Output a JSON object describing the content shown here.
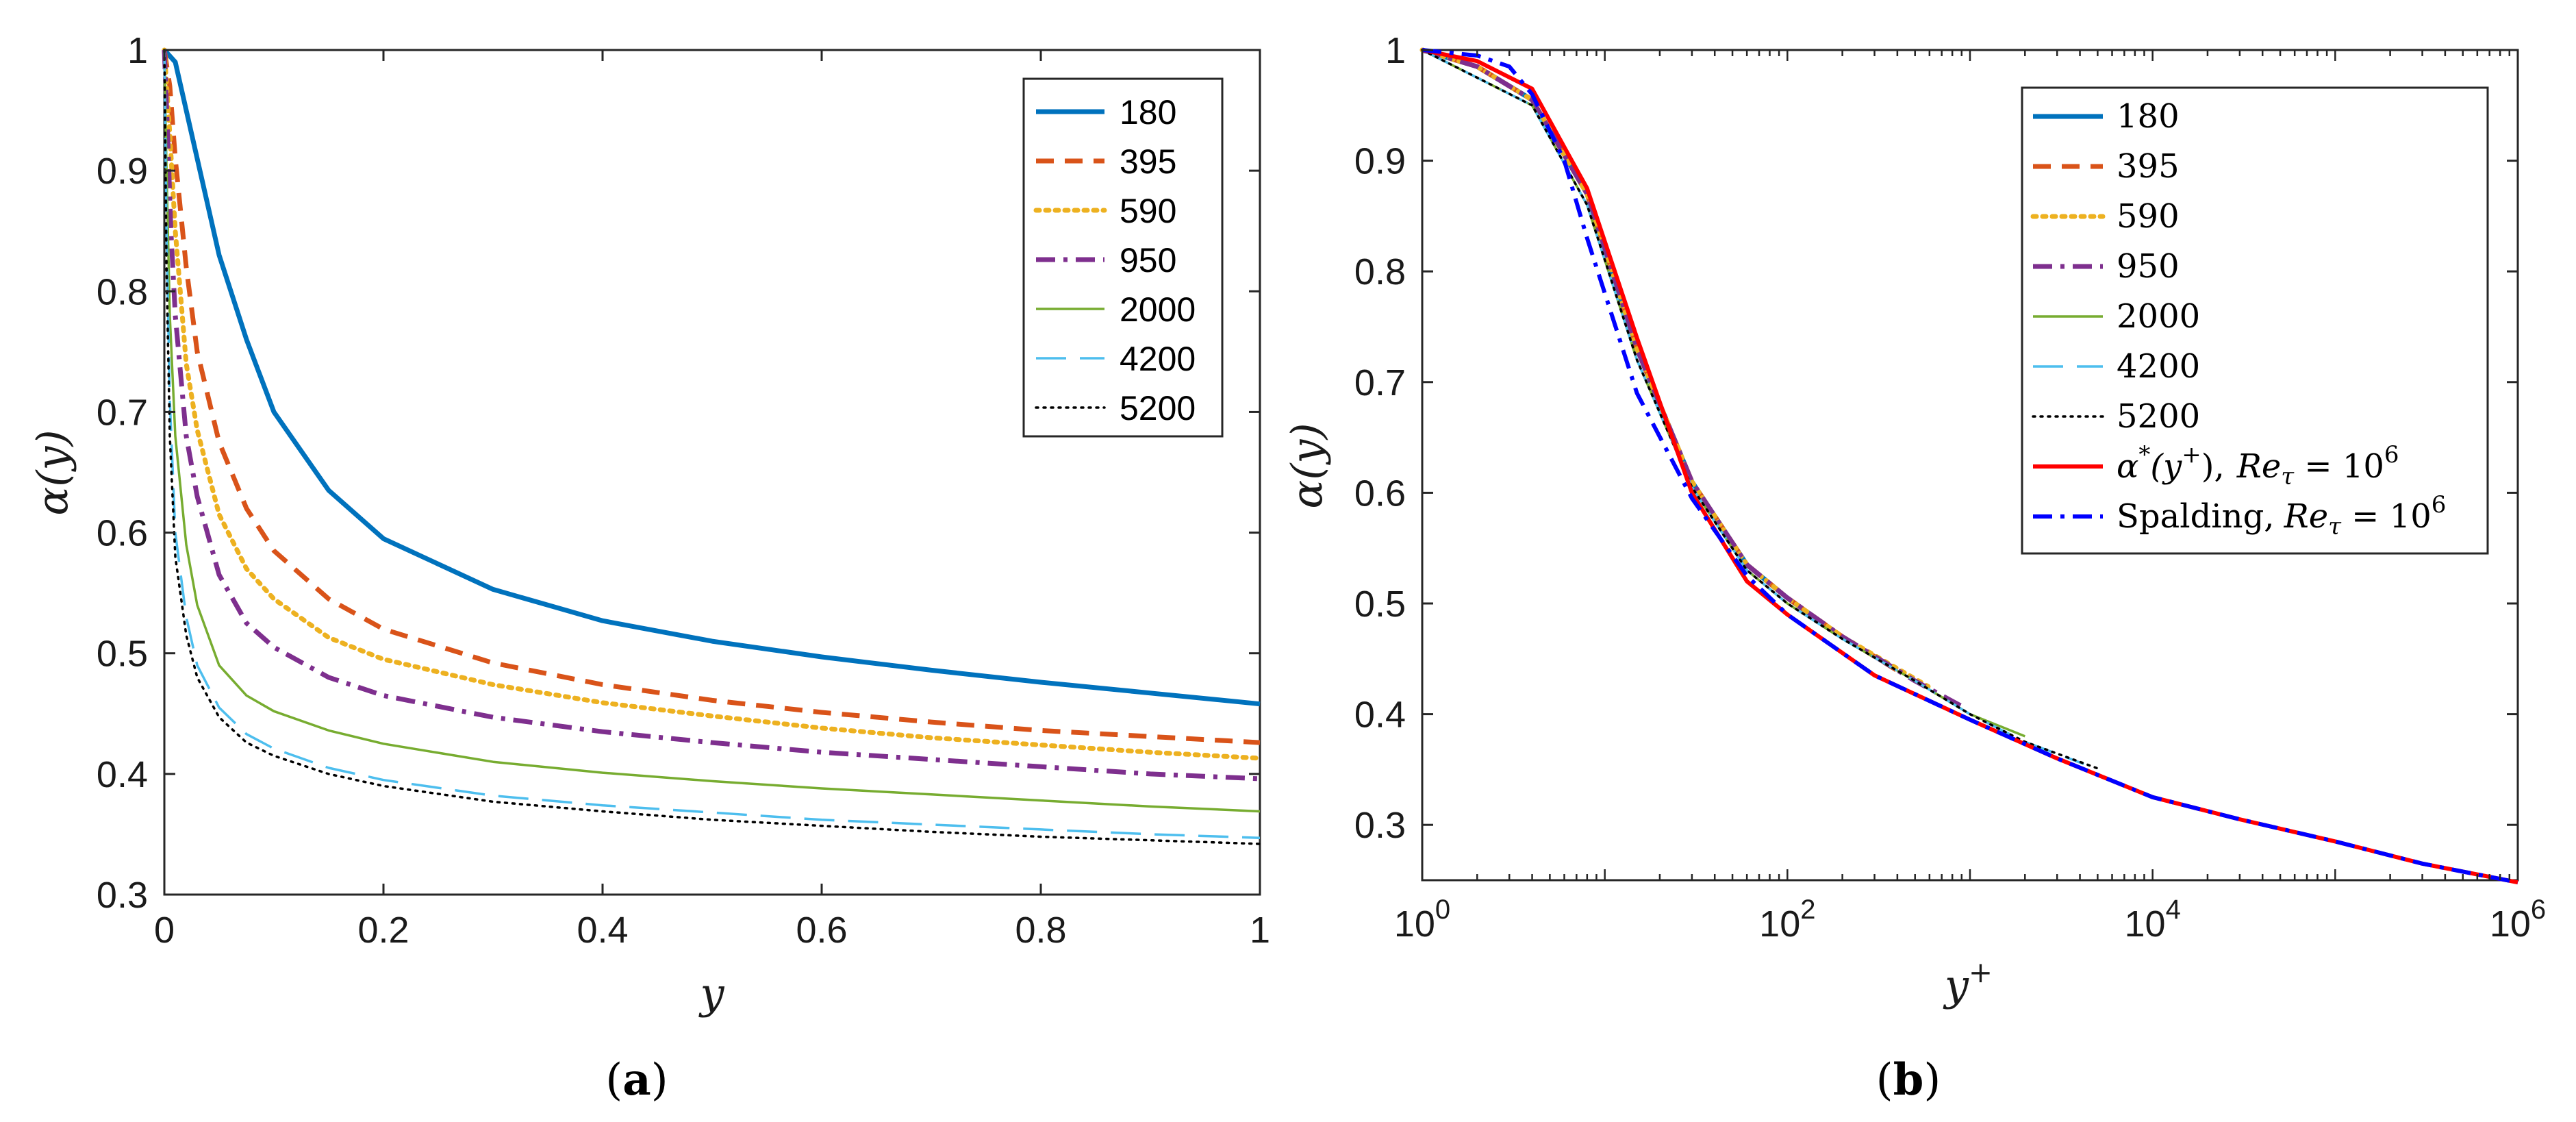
{
  "chart_data": [
    {
      "panel": "a",
      "caption": {
        "open": "(",
        "letter": "a",
        "close": ")"
      },
      "type": "line",
      "xlabel": "y",
      "ylabel": "α(y)",
      "xlim": [
        0,
        1
      ],
      "ylim": [
        0.3,
        1
      ],
      "xticks": [
        "0",
        "0.2",
        "0.4",
        "0.6",
        "0.8",
        "1"
      ],
      "yticks": [
        "0.3",
        "0.4",
        "0.5",
        "0.6",
        "0.7",
        "0.8",
        "0.9",
        "1"
      ],
      "legend_position": "top-right",
      "series": [
        {
          "name": "180",
          "color": "#0072BD",
          "dash": "solid",
          "width": 7,
          "x": [
            0,
            0.01,
            0.025,
            0.05,
            0.075,
            0.1,
            0.15,
            0.2,
            0.3,
            0.4,
            0.5,
            0.6,
            0.7,
            0.8,
            0.9,
            1.0
          ],
          "y": [
            1.0,
            0.99,
            0.93,
            0.83,
            0.76,
            0.7,
            0.635,
            0.595,
            0.553,
            0.527,
            0.51,
            0.497,
            0.486,
            0.476,
            0.467,
            0.458
          ]
        },
        {
          "name": "395",
          "color": "#D95319",
          "dash": "dashed",
          "width": 7,
          "x": [
            0,
            0.005,
            0.01,
            0.02,
            0.03,
            0.05,
            0.075,
            0.1,
            0.15,
            0.2,
            0.3,
            0.4,
            0.5,
            0.6,
            0.7,
            0.8,
            0.9,
            1.0
          ],
          "y": [
            1.0,
            0.97,
            0.91,
            0.82,
            0.75,
            0.675,
            0.62,
            0.585,
            0.545,
            0.52,
            0.492,
            0.474,
            0.461,
            0.451,
            0.443,
            0.436,
            0.431,
            0.426
          ]
        },
        {
          "name": "590",
          "color": "#EDB120",
          "dash": "dotted",
          "width": 7,
          "x": [
            0,
            0.005,
            0.01,
            0.02,
            0.03,
            0.05,
            0.075,
            0.1,
            0.15,
            0.2,
            0.3,
            0.4,
            0.5,
            0.6,
            0.7,
            0.8,
            0.9,
            1.0
          ],
          "y": [
            1.0,
            0.93,
            0.85,
            0.74,
            0.685,
            0.615,
            0.57,
            0.545,
            0.513,
            0.495,
            0.474,
            0.459,
            0.448,
            0.438,
            0.43,
            0.424,
            0.418,
            0.413
          ]
        },
        {
          "name": "950",
          "color": "#7E2F8E",
          "dash": "dashdot",
          "width": 7,
          "x": [
            0,
            0.003,
            0.006,
            0.01,
            0.02,
            0.03,
            0.05,
            0.075,
            0.1,
            0.15,
            0.2,
            0.3,
            0.4,
            0.5,
            0.6,
            0.7,
            0.8,
            0.9,
            1.0
          ],
          "y": [
            1.0,
            0.93,
            0.85,
            0.78,
            0.68,
            0.63,
            0.565,
            0.525,
            0.505,
            0.48,
            0.465,
            0.447,
            0.435,
            0.426,
            0.418,
            0.412,
            0.406,
            0.4,
            0.396
          ]
        },
        {
          "name": "2000",
          "color": "#77AC30",
          "dash": "solid",
          "width": 3.5,
          "x": [
            0,
            0.002,
            0.005,
            0.01,
            0.02,
            0.03,
            0.05,
            0.075,
            0.1,
            0.15,
            0.2,
            0.3,
            0.4,
            0.5,
            0.6,
            0.7,
            0.8,
            0.9,
            1.0
          ],
          "y": [
            1.0,
            0.9,
            0.78,
            0.68,
            0.59,
            0.54,
            0.49,
            0.465,
            0.452,
            0.436,
            0.425,
            0.41,
            0.401,
            0.394,
            0.388,
            0.383,
            0.378,
            0.373,
            0.369
          ]
        },
        {
          "name": "4200",
          "color": "#4DBEEE",
          "dash": "longdash",
          "width": 3.5,
          "x": [
            0,
            0.002,
            0.005,
            0.01,
            0.02,
            0.03,
            0.05,
            0.075,
            0.1,
            0.15,
            0.2,
            0.3,
            0.4,
            0.5,
            0.6,
            0.7,
            0.8,
            0.9,
            1.0
          ],
          "y": [
            1.0,
            0.85,
            0.71,
            0.6,
            0.53,
            0.49,
            0.455,
            0.433,
            0.421,
            0.405,
            0.395,
            0.382,
            0.374,
            0.368,
            0.362,
            0.358,
            0.354,
            0.35,
            0.347
          ]
        },
        {
          "name": "5200",
          "color": "#000000",
          "dash": "finedot",
          "width": 3.5,
          "x": [
            0,
            0.002,
            0.005,
            0.01,
            0.02,
            0.03,
            0.05,
            0.075,
            0.1,
            0.15,
            0.2,
            0.3,
            0.4,
            0.5,
            0.6,
            0.7,
            0.8,
            0.9,
            1.0
          ],
          "y": [
            1.0,
            0.82,
            0.68,
            0.58,
            0.515,
            0.48,
            0.447,
            0.426,
            0.415,
            0.4,
            0.39,
            0.377,
            0.369,
            0.362,
            0.357,
            0.352,
            0.348,
            0.345,
            0.342
          ]
        }
      ]
    },
    {
      "panel": "b",
      "caption": {
        "open": "(",
        "letter": "b",
        "close": ")"
      },
      "type": "line",
      "xscale": "log",
      "xlabel": "y+",
      "ylabel": "α(y)",
      "xlim": [
        1,
        1000000
      ],
      "ylim": [
        0.25,
        1
      ],
      "xticks": [
        {
          "base": "10",
          "exp": "0"
        },
        {
          "base": "10",
          "exp": "2"
        },
        {
          "base": "10",
          "exp": "4"
        },
        {
          "base": "10",
          "exp": "6"
        }
      ],
      "yticks": [
        "0.3",
        "0.4",
        "0.5",
        "0.6",
        "0.7",
        "0.8",
        "0.9",
        "1"
      ],
      "legend_position": "top-right",
      "series": [
        {
          "name": "180",
          "color": "#0072BD",
          "dash": "solid",
          "width": 7,
          "x": [
            1,
            2,
            4,
            8,
            15,
            30,
            60,
            100,
            180
          ],
          "y": [
            1.0,
            0.985,
            0.955,
            0.87,
            0.73,
            0.61,
            0.535,
            0.505,
            0.475
          ]
        },
        {
          "name": "395",
          "color": "#D95319",
          "dash": "dashed",
          "width": 7,
          "x": [
            1,
            2,
            4,
            8,
            15,
            30,
            60,
            100,
            200,
            395
          ],
          "y": [
            1.0,
            0.985,
            0.955,
            0.87,
            0.73,
            0.61,
            0.535,
            0.505,
            0.47,
            0.44
          ]
        },
        {
          "name": "590",
          "color": "#EDB120",
          "dash": "dotted",
          "width": 7,
          "x": [
            1,
            2,
            4,
            8,
            15,
            30,
            60,
            100,
            200,
            590
          ],
          "y": [
            1.0,
            0.985,
            0.955,
            0.87,
            0.73,
            0.61,
            0.535,
            0.505,
            0.47,
            0.425
          ]
        },
        {
          "name": "950",
          "color": "#7E2F8E",
          "dash": "dashdot",
          "width": 7,
          "x": [
            1,
            2,
            4,
            8,
            15,
            30,
            60,
            100,
            200,
            500,
            950
          ],
          "y": [
            1.0,
            0.985,
            0.955,
            0.87,
            0.73,
            0.61,
            0.535,
            0.505,
            0.47,
            0.43,
            0.405
          ]
        },
        {
          "name": "2000",
          "color": "#77AC30",
          "dash": "solid",
          "width": 3.5,
          "x": [
            1,
            2,
            4,
            8,
            15,
            30,
            60,
            100,
            200,
            500,
            1000,
            2000
          ],
          "y": [
            1.0,
            0.975,
            0.95,
            0.86,
            0.72,
            0.605,
            0.53,
            0.5,
            0.468,
            0.43,
            0.4,
            0.38
          ]
        },
        {
          "name": "4200",
          "color": "#4DBEEE",
          "dash": "longdash",
          "width": 3.5,
          "x": [
            1,
            2,
            4,
            8,
            15,
            30,
            60,
            100,
            200,
            500,
            1000,
            2000,
            4200
          ],
          "y": [
            1.0,
            0.975,
            0.95,
            0.86,
            0.72,
            0.605,
            0.53,
            0.5,
            0.468,
            0.43,
            0.4,
            0.375,
            0.355
          ]
        },
        {
          "name": "5200",
          "color": "#000000",
          "dash": "finedot",
          "width": 3.5,
          "x": [
            1,
            2,
            4,
            8,
            15,
            30,
            60,
            100,
            200,
            500,
            1000,
            2000,
            5200
          ],
          "y": [
            1.0,
            0.975,
            0.95,
            0.86,
            0.72,
            0.605,
            0.53,
            0.5,
            0.468,
            0.43,
            0.4,
            0.375,
            0.35
          ]
        },
        {
          "name": "α*(y+), Reτ = 10^6",
          "color": "#FF0000",
          "dash": "solid",
          "width": 6,
          "x": [
            1,
            2,
            4,
            8,
            15,
            30,
            60,
            100,
            300,
            1000,
            3000,
            10000,
            30000,
            100000,
            300000,
            1000000
          ],
          "y": [
            1.0,
            0.99,
            0.965,
            0.875,
            0.74,
            0.6,
            0.52,
            0.49,
            0.435,
            0.395,
            0.36,
            0.325,
            0.305,
            0.285,
            0.265,
            0.248
          ]
        },
        {
          "name": "Spalding, Reτ = 10^6",
          "color": "#0000FF",
          "dash": "dashdot",
          "width": 6,
          "x": [
            1,
            2,
            3,
            4,
            6,
            8,
            15,
            30,
            60,
            100,
            300,
            1000,
            3000,
            10000,
            30000,
            100000,
            300000,
            1000000
          ],
          "y": [
            1.0,
            0.995,
            0.985,
            0.96,
            0.9,
            0.83,
            0.69,
            0.595,
            0.525,
            0.49,
            0.435,
            0.395,
            0.36,
            0.325,
            0.305,
            0.285,
            0.265,
            0.248
          ]
        }
      ],
      "legend_labels": [
        {
          "text": "180"
        },
        {
          "text": "395"
        },
        {
          "text": "590"
        },
        {
          "text": "950"
        },
        {
          "text": "2000"
        },
        {
          "text": "4200"
        },
        {
          "text": "5200"
        },
        {
          "alpha": "α",
          "star": "*",
          "paren_open": "(y",
          "plus": "+",
          "paren_close": "),",
          "re": "Re",
          "tau": "τ",
          "eq": " = 10",
          "exp": "6"
        },
        {
          "name": "Spalding,",
          "re": "Re",
          "tau": "τ",
          "eq": " = 10",
          "exp": "6"
        }
      ]
    }
  ]
}
